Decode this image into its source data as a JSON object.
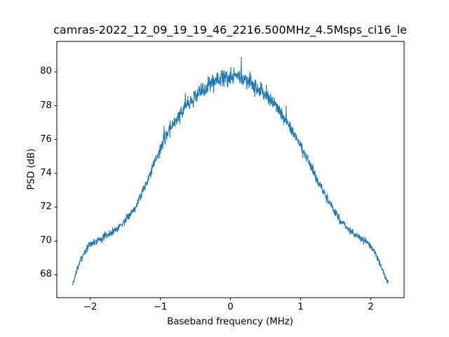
{
  "figure": {
    "background": "#ffffff"
  },
  "chart_data": {
    "type": "line",
    "title": "camras-2022_12_09_19_19_46_2216.500MHz_4.5Msps_ci16_le",
    "xlabel": "Baseband frequency (MHz)",
    "ylabel": "PSD (dB)",
    "legend": "none",
    "grid": false,
    "line_color": "#1f77b4",
    "axis_color": "#000000",
    "text_color": "#000000",
    "xlim": [
      -2.475,
      2.475
    ],
    "ylim": [
      66.65,
      81.8
    ],
    "xticks": [
      {
        "value": -2,
        "label": "−2"
      },
      {
        "value": -1,
        "label": "−1"
      },
      {
        "value": 0,
        "label": "0"
      },
      {
        "value": 1,
        "label": "1"
      },
      {
        "value": 2,
        "label": "2"
      }
    ],
    "yticks": [
      {
        "value": 68,
        "label": "68"
      },
      {
        "value": 70,
        "label": "70"
      },
      {
        "value": 72,
        "label": "72"
      },
      {
        "value": 74,
        "label": "74"
      },
      {
        "value": 76,
        "label": "76"
      },
      {
        "value": 78,
        "label": "78"
      },
      {
        "value": 80,
        "label": "80"
      }
    ],
    "series": [
      {
        "name": "psd",
        "f_start_mhz": -2.25,
        "f_step_mhz": 0.05,
        "envelope_db": [
          67.4,
          68.15,
          68.75,
          69.2,
          69.55,
          69.8,
          69.92,
          70.02,
          70.12,
          70.22,
          70.35,
          70.5,
          70.65,
          70.82,
          71.0,
          71.2,
          71.45,
          71.75,
          72.1,
          72.5,
          72.95,
          73.45,
          73.95,
          74.45,
          74.95,
          75.45,
          75.92,
          76.35,
          76.72,
          77.05,
          77.35,
          77.62,
          77.88,
          78.12,
          78.34,
          78.55,
          78.75,
          78.93,
          79.1,
          79.25,
          79.38,
          79.49,
          79.58,
          79.65,
          79.7,
          79.72,
          79.72,
          79.68,
          79.62,
          79.54,
          79.44,
          79.32,
          79.18,
          79.02,
          78.84,
          78.64,
          78.42,
          78.18,
          77.92,
          77.64,
          77.34,
          77.02,
          76.68,
          76.32,
          76.0,
          75.6,
          75.2,
          74.8,
          74.35,
          73.9,
          73.5,
          73.1,
          72.7,
          72.35,
          72.0,
          71.65,
          71.35,
          71.05,
          70.8,
          70.6,
          70.42,
          70.28,
          70.15,
          70.02,
          69.88,
          69.7,
          69.4,
          68.95,
          68.4,
          67.95,
          67.4
        ],
        "min_db": 67.3,
        "max_db": 81.15,
        "noise": {
          "band_tail_db": 0.2,
          "band_peak_db": 0.56,
          "spike_prob": 0.018,
          "spike_max_db": 1.4,
          "n_points": 1150,
          "seed": 7
        }
      }
    ]
  }
}
